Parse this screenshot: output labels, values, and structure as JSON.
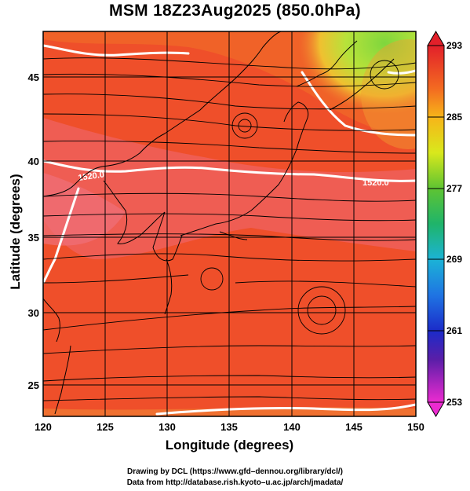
{
  "title": "MSM 18Z23Aug2025 (850.0hPa)",
  "xlabel": "Longitude (degrees)",
  "ylabel": "Latitude  (degrees)",
  "x_ticks": [
    "120",
    "125",
    "130",
    "135",
    "140",
    "145",
    "150"
  ],
  "y_ticks": [
    "25",
    "30",
    "35",
    "40",
    "45"
  ],
  "colorbar": {
    "labels": [
      "293",
      "285",
      "277",
      "269",
      "261",
      "253"
    ],
    "min": 253,
    "max": 293
  },
  "contour_labels": [
    "1520.0",
    "1520.0"
  ],
  "credits": [
    "Drawing by DCL (https://www.gfd–dennou.org/library/dcl/)",
    "Data from http://database.rish.kyoto–u.ac.jp/arch/jmadata/"
  ],
  "colors": {
    "field_dominant": "#ee4a2a",
    "field_warm_band": "#ef5d55",
    "field_cool_ne": "#8fd93a",
    "contour": "#ffffff",
    "streamline": "#000000",
    "coastline": "#000000"
  },
  "chart_data": {
    "type": "heatmap",
    "title": "MSM 18Z23Aug2025 (850.0hPa)",
    "xlabel": "Longitude (degrees)",
    "ylabel": "Latitude  (degrees)",
    "xlim": [
      120,
      150
    ],
    "ylim": [
      22.4,
      47.6
    ],
    "x_ticks": [
      120,
      125,
      130,
      135,
      140,
      145,
      150
    ],
    "y_ticks": [
      25,
      30,
      35,
      40,
      45
    ],
    "colorbar_range": [
      253,
      293
    ],
    "colorbar_ticks": [
      293,
      285,
      277,
      269,
      261,
      253
    ],
    "contour_value": 1520.0,
    "grid": true
  }
}
